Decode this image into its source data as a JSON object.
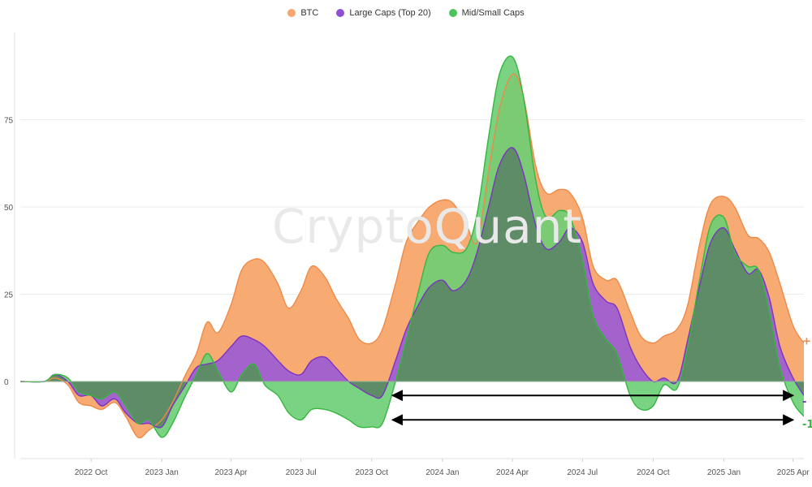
{
  "colors": {
    "btc": "#F7A66C",
    "btc_stroke": "#EE8A48",
    "large": "#9A5AD6",
    "large_stroke": "#7B33C4",
    "mid": "#6CCE74",
    "mid_stroke": "#36B640",
    "overlap": "#5E8C67",
    "overlap_stroke": "#4F7A57",
    "arrow": "#000000"
  },
  "watermark": "CryptoQuant",
  "edge_labels": [
    {
      "text": "+",
      "color": "#EE8A48"
    },
    {
      "text": "-",
      "color": "#7B33C4"
    },
    {
      "text": "-1",
      "color": "#36B640"
    }
  ],
  "chart_data": {
    "type": "area",
    "title": "",
    "xlabel": "",
    "ylabel": "",
    "x_range": [
      "2022-07-01",
      "2025-04-15"
    ],
    "ylim": [
      -20,
      100
    ],
    "y_ticks": [
      {
        "value": 0,
        "label": "0"
      },
      {
        "value": 25,
        "label": "25"
      },
      {
        "value": 50,
        "label": "50"
      },
      {
        "value": 75,
        "label": "75"
      }
    ],
    "x_ticks": [
      {
        "date": "2022-10-01",
        "label": "2022 Oct"
      },
      {
        "date": "2023-01-01",
        "label": "2023 Jan"
      },
      {
        "date": "2023-04-01",
        "label": "2023 Apr"
      },
      {
        "date": "2023-07-01",
        "label": "2023 Jul"
      },
      {
        "date": "2023-10-01",
        "label": "2023 Oct"
      },
      {
        "date": "2024-01-01",
        "label": "2024 Jan"
      },
      {
        "date": "2024-04-01",
        "label": "2024 Apr"
      },
      {
        "date": "2024-07-01",
        "label": "2024 Jul"
      },
      {
        "date": "2024-10-01",
        "label": "2024 Oct"
      },
      {
        "date": "2025-01-01",
        "label": "2025 Jan"
      },
      {
        "date": "2025-04-01",
        "label": "2025 Apr"
      }
    ],
    "grid": "horizontal",
    "legend_position": "top-center",
    "series": [
      {
        "name": "BTC",
        "color_key": "btc",
        "points": [
          [
            "2022-07-01",
            0
          ],
          [
            "2022-08-01",
            0
          ],
          [
            "2022-08-15",
            1
          ],
          [
            "2022-09-01",
            -1
          ],
          [
            "2022-09-15",
            -6
          ],
          [
            "2022-10-01",
            -7
          ],
          [
            "2022-10-15",
            -8
          ],
          [
            "2022-11-01",
            -6
          ],
          [
            "2022-11-15",
            -10
          ],
          [
            "2022-12-01",
            -16
          ],
          [
            "2022-12-15",
            -14
          ],
          [
            "2023-01-01",
            -11
          ],
          [
            "2023-01-15",
            -6
          ],
          [
            "2023-02-01",
            2
          ],
          [
            "2023-02-15",
            8
          ],
          [
            "2023-03-01",
            17
          ],
          [
            "2023-03-15",
            14
          ],
          [
            "2023-04-01",
            22
          ],
          [
            "2023-04-15",
            32
          ],
          [
            "2023-05-01",
            35
          ],
          [
            "2023-05-15",
            34
          ],
          [
            "2023-06-01",
            28
          ],
          [
            "2023-06-15",
            21
          ],
          [
            "2023-07-01",
            26
          ],
          [
            "2023-07-15",
            33
          ],
          [
            "2023-08-01",
            30
          ],
          [
            "2023-08-15",
            24
          ],
          [
            "2023-09-01",
            18
          ],
          [
            "2023-09-15",
            12
          ],
          [
            "2023-10-01",
            11
          ],
          [
            "2023-10-15",
            15
          ],
          [
            "2023-11-01",
            28
          ],
          [
            "2023-11-15",
            40
          ],
          [
            "2023-12-01",
            46
          ],
          [
            "2023-12-15",
            50
          ],
          [
            "2024-01-01",
            52
          ],
          [
            "2024-01-15",
            51
          ],
          [
            "2024-02-01",
            45
          ],
          [
            "2024-02-15",
            40
          ],
          [
            "2024-03-01",
            60
          ],
          [
            "2024-03-15",
            78
          ],
          [
            "2024-04-01",
            88
          ],
          [
            "2024-04-15",
            82
          ],
          [
            "2024-05-01",
            62
          ],
          [
            "2024-05-15",
            54
          ],
          [
            "2024-06-01",
            55
          ],
          [
            "2024-06-15",
            54
          ],
          [
            "2024-07-01",
            47
          ],
          [
            "2024-07-15",
            33
          ],
          [
            "2024-08-01",
            29
          ],
          [
            "2024-08-15",
            29
          ],
          [
            "2024-09-01",
            20
          ],
          [
            "2024-09-15",
            13
          ],
          [
            "2024-10-01",
            11
          ],
          [
            "2024-10-15",
            13
          ],
          [
            "2024-11-01",
            15
          ],
          [
            "2024-11-15",
            22
          ],
          [
            "2024-12-01",
            40
          ],
          [
            "2024-12-15",
            51
          ],
          [
            "2025-01-01",
            53
          ],
          [
            "2025-01-15",
            50
          ],
          [
            "2025-02-01",
            42
          ],
          [
            "2025-02-15",
            41
          ],
          [
            "2025-03-01",
            37
          ],
          [
            "2025-03-15",
            28
          ],
          [
            "2025-04-01",
            16
          ],
          [
            "2025-04-15",
            11
          ]
        ]
      },
      {
        "name": "Large Caps (Top 20)",
        "color_key": "large",
        "points": [
          [
            "2022-07-01",
            0
          ],
          [
            "2022-08-01",
            0
          ],
          [
            "2022-08-15",
            2
          ],
          [
            "2022-09-01",
            0
          ],
          [
            "2022-09-15",
            -4
          ],
          [
            "2022-10-01",
            -4
          ],
          [
            "2022-10-15",
            -7
          ],
          [
            "2022-11-01",
            -5
          ],
          [
            "2022-11-15",
            -9
          ],
          [
            "2022-12-01",
            -12
          ],
          [
            "2022-12-15",
            -12
          ],
          [
            "2023-01-01",
            -13
          ],
          [
            "2023-01-15",
            -7
          ],
          [
            "2023-02-01",
            -1
          ],
          [
            "2023-02-15",
            4
          ],
          [
            "2023-03-01",
            5
          ],
          [
            "2023-03-15",
            6
          ],
          [
            "2023-04-01",
            10
          ],
          [
            "2023-04-15",
            13
          ],
          [
            "2023-05-01",
            12
          ],
          [
            "2023-05-15",
            10
          ],
          [
            "2023-06-01",
            6
          ],
          [
            "2023-06-15",
            3
          ],
          [
            "2023-07-01",
            2
          ],
          [
            "2023-07-15",
            6
          ],
          [
            "2023-08-01",
            7
          ],
          [
            "2023-08-15",
            4
          ],
          [
            "2023-09-01",
            0
          ],
          [
            "2023-09-15",
            -2
          ],
          [
            "2023-10-01",
            -4
          ],
          [
            "2023-10-15",
            -4
          ],
          [
            "2023-11-01",
            6
          ],
          [
            "2023-11-15",
            15
          ],
          [
            "2023-12-01",
            22
          ],
          [
            "2023-12-15",
            27
          ],
          [
            "2024-01-01",
            29
          ],
          [
            "2024-01-15",
            26
          ],
          [
            "2024-02-01",
            29
          ],
          [
            "2024-02-15",
            37
          ],
          [
            "2024-03-01",
            50
          ],
          [
            "2024-03-15",
            62
          ],
          [
            "2024-04-01",
            67
          ],
          [
            "2024-04-15",
            60
          ],
          [
            "2024-05-01",
            45
          ],
          [
            "2024-05-15",
            38
          ],
          [
            "2024-06-01",
            40
          ],
          [
            "2024-06-15",
            44
          ],
          [
            "2024-07-01",
            40
          ],
          [
            "2024-07-15",
            28
          ],
          [
            "2024-08-01",
            23
          ],
          [
            "2024-08-15",
            21
          ],
          [
            "2024-09-01",
            10
          ],
          [
            "2024-09-15",
            4
          ],
          [
            "2024-10-01",
            0
          ],
          [
            "2024-10-15",
            1
          ],
          [
            "2024-11-01",
            0
          ],
          [
            "2024-11-15",
            12
          ],
          [
            "2024-12-01",
            28
          ],
          [
            "2024-12-15",
            40
          ],
          [
            "2025-01-01",
            44
          ],
          [
            "2025-01-15",
            38
          ],
          [
            "2025-02-01",
            31
          ],
          [
            "2025-02-15",
            32
          ],
          [
            "2025-03-01",
            24
          ],
          [
            "2025-03-15",
            10
          ],
          [
            "2025-04-01",
            1
          ],
          [
            "2025-04-15",
            -4
          ]
        ]
      },
      {
        "name": "Mid/Small Caps",
        "color_key": "mid",
        "points": [
          [
            "2022-07-01",
            0
          ],
          [
            "2022-08-01",
            0
          ],
          [
            "2022-08-15",
            2
          ],
          [
            "2022-09-01",
            1
          ],
          [
            "2022-09-15",
            -3
          ],
          [
            "2022-10-01",
            -4
          ],
          [
            "2022-10-15",
            -5
          ],
          [
            "2022-11-01",
            -3
          ],
          [
            "2022-11-15",
            -7
          ],
          [
            "2022-12-01",
            -12
          ],
          [
            "2022-12-15",
            -11
          ],
          [
            "2023-01-01",
            -16
          ],
          [
            "2023-01-15",
            -12
          ],
          [
            "2023-02-01",
            -4
          ],
          [
            "2023-02-15",
            2
          ],
          [
            "2023-03-01",
            8
          ],
          [
            "2023-03-15",
            3
          ],
          [
            "2023-04-01",
            -3
          ],
          [
            "2023-04-15",
            2
          ],
          [
            "2023-05-01",
            5
          ],
          [
            "2023-05-15",
            -1
          ],
          [
            "2023-06-01",
            -4
          ],
          [
            "2023-06-15",
            -9
          ],
          [
            "2023-07-01",
            -11
          ],
          [
            "2023-07-15",
            -8
          ],
          [
            "2023-08-01",
            -8
          ],
          [
            "2023-08-15",
            -9
          ],
          [
            "2023-09-01",
            -11
          ],
          [
            "2023-09-15",
            -13
          ],
          [
            "2023-10-01",
            -13
          ],
          [
            "2023-10-15",
            -12
          ],
          [
            "2023-11-01",
            0
          ],
          [
            "2023-11-15",
            12
          ],
          [
            "2023-12-01",
            26
          ],
          [
            "2023-12-15",
            37
          ],
          [
            "2024-01-01",
            39
          ],
          [
            "2024-01-15",
            37
          ],
          [
            "2024-02-01",
            38
          ],
          [
            "2024-02-15",
            48
          ],
          [
            "2024-03-01",
            70
          ],
          [
            "2024-03-15",
            88
          ],
          [
            "2024-04-01",
            93
          ],
          [
            "2024-04-15",
            82
          ],
          [
            "2024-05-01",
            58
          ],
          [
            "2024-05-15",
            47
          ],
          [
            "2024-06-01",
            49
          ],
          [
            "2024-06-15",
            47
          ],
          [
            "2024-07-01",
            35
          ],
          [
            "2024-07-15",
            19
          ],
          [
            "2024-08-01",
            12
          ],
          [
            "2024-08-15",
            8
          ],
          [
            "2024-09-01",
            -4
          ],
          [
            "2024-09-15",
            -8
          ],
          [
            "2024-10-01",
            -7
          ],
          [
            "2024-10-15",
            -1
          ],
          [
            "2024-11-01",
            -2
          ],
          [
            "2024-11-15",
            10
          ],
          [
            "2024-12-01",
            30
          ],
          [
            "2024-12-15",
            45
          ],
          [
            "2025-01-01",
            47
          ],
          [
            "2025-01-15",
            37
          ],
          [
            "2025-02-01",
            33
          ],
          [
            "2025-02-15",
            32
          ],
          [
            "2025-03-01",
            20
          ],
          [
            "2025-03-15",
            4
          ],
          [
            "2025-04-01",
            -6
          ],
          [
            "2025-04-15",
            -10
          ]
        ]
      }
    ],
    "annotations": [
      {
        "type": "double-arrow",
        "x_start": "2023-10-28",
        "x_end": "2025-04-01",
        "y": -4
      },
      {
        "type": "double-arrow",
        "x_start": "2023-10-28",
        "x_end": "2025-04-01",
        "y": -11
      }
    ]
  }
}
